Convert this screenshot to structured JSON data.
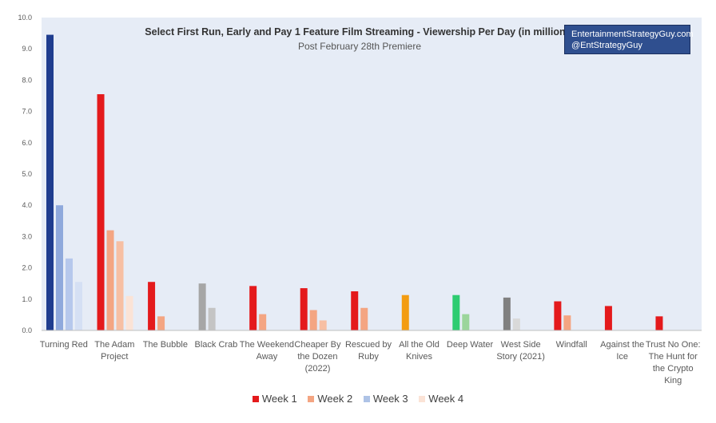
{
  "chart_data": {
    "type": "bar",
    "title": "Select First Run, Early and Pay 1 Feature Film Streaming - Viewership Per Day (in millions)",
    "subtitle": "Post February 28th Premiere",
    "ylim": [
      0,
      10
    ],
    "yticks": [
      "0.0",
      "1.0",
      "2.0",
      "3.0",
      "4.0",
      "5.0",
      "6.0",
      "7.0",
      "8.0",
      "9.0",
      "10.0"
    ],
    "grid": false,
    "legend_position": "bottom",
    "series_names": [
      "Week 1",
      "Week 2",
      "Week 3",
      "Week 4"
    ],
    "legend_colors": [
      "#e41a1c",
      "#f4a582",
      "#aec3e6",
      "#fbe3d6"
    ],
    "categories": [
      {
        "label": [
          "Turning Red"
        ],
        "values": [
          9.45,
          4.0,
          2.3,
          1.55
        ],
        "colors": [
          "#1f3d8f",
          "#8fa9dc",
          "#b6c8ec",
          "#d5e0f4"
        ]
      },
      {
        "label": [
          "The Adam",
          "Project"
        ],
        "values": [
          7.55,
          3.2,
          2.85,
          1.1
        ],
        "colors": [
          "#e41a1c",
          "#f4a582",
          "#f7bfa3",
          "#fbe3d6"
        ]
      },
      {
        "label": [
          "The Bubble"
        ],
        "values": [
          1.55,
          0.45,
          null,
          null
        ],
        "colors": [
          "#e41a1c",
          "#f4a582",
          "#f7bfa3",
          "#fbe3d6"
        ]
      },
      {
        "label": [
          "Black Crab"
        ],
        "values": [
          1.5,
          0.72,
          null,
          null
        ],
        "colors": [
          "#a6a6a6",
          "#c4c4c4",
          "#d9d9d9",
          "#ededed"
        ]
      },
      {
        "label": [
          "The Weekend",
          "Away"
        ],
        "values": [
          1.42,
          0.52,
          null,
          null
        ],
        "colors": [
          "#e41a1c",
          "#f4a582",
          "#f7bfa3",
          "#fbe3d6"
        ]
      },
      {
        "label": [
          "Cheaper By",
          "the Dozen",
          "(2022)"
        ],
        "values": [
          1.35,
          0.65,
          0.32,
          null
        ],
        "colors": [
          "#e41a1c",
          "#f4a582",
          "#f7bfa3",
          "#fbe3d6"
        ]
      },
      {
        "label": [
          "Rescued by",
          "Ruby"
        ],
        "values": [
          1.25,
          0.72,
          null,
          null
        ],
        "colors": [
          "#e41a1c",
          "#f4a582",
          "#f7bfa3",
          "#fbe3d6"
        ]
      },
      {
        "label": [
          "All the Old",
          "Knives"
        ],
        "values": [
          1.13,
          null,
          null,
          null
        ],
        "colors": [
          "#f39c12",
          "#f8c471",
          "#fad7a0",
          "#fdebd0"
        ]
      },
      {
        "label": [
          "Deep Water"
        ],
        "values": [
          1.13,
          0.52,
          null,
          null
        ],
        "colors": [
          "#2ecc71",
          "#9bd59b",
          "#c5e8c5",
          "#e3f4e3"
        ]
      },
      {
        "label": [
          "West Side",
          "Story (2021)"
        ],
        "values": [
          1.05,
          0.38,
          null,
          null
        ],
        "colors": [
          "#808080",
          "#d9d9d9",
          "#e6e6e6",
          "#f2f2f2"
        ]
      },
      {
        "label": [
          "Windfall"
        ],
        "values": [
          0.93,
          0.48,
          null,
          null
        ],
        "colors": [
          "#e41a1c",
          "#f4a582",
          "#f7bfa3",
          "#fbe3d6"
        ]
      },
      {
        "label": [
          "Against the",
          "Ice"
        ],
        "values": [
          0.78,
          null,
          null,
          null
        ],
        "colors": [
          "#e41a1c",
          "#f4a582",
          "#f7bfa3",
          "#fbe3d6"
        ]
      },
      {
        "label": [
          "Trust No One:",
          "The Hunt for",
          "the Crypto",
          "King"
        ],
        "values": [
          0.45,
          null,
          null,
          null
        ],
        "colors": [
          "#e41a1c",
          "#f4a582",
          "#f7bfa3",
          "#fbe3d6"
        ]
      }
    ]
  },
  "branding": {
    "line1": "EntertainmentStrategyGuy.com",
    "line2": "@EntStrategyGuy"
  },
  "colors": {
    "plot_background": "#e6ecf6",
    "title_color": "#333333",
    "axis_text": "#595959"
  }
}
